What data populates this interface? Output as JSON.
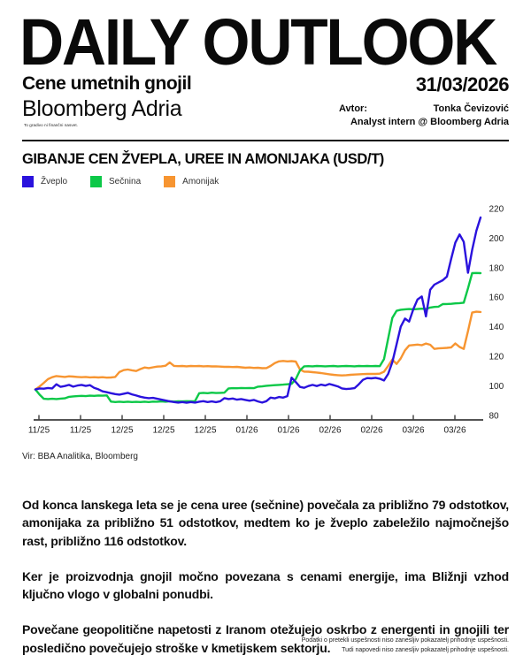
{
  "header": {
    "title": "DAILY OUTLOOK",
    "subtitle": "Cene umetnih gnojil",
    "date": "31/03/2026",
    "brand": "Bloomberg Adria",
    "author_label": "Avtor:",
    "author_name": "Tonka Čevizović",
    "author_role": "Analyst intern @ Bloomberg Adria",
    "disclaimer": "To gradivo ni finančni nasvet."
  },
  "chart_data": {
    "type": "line",
    "title": "GIBANJE CEN ŽVEPLA, UREE IN AMONIJAKA (USD/T)",
    "unit": "USD/T",
    "source": "Vir: BBA Analitika, Bloomberg",
    "grid": false,
    "legend_position": "top-left",
    "ylim": [
      76,
      222
    ],
    "y_ticks": [
      220,
      200,
      180,
      160,
      140,
      120,
      100,
      80
    ],
    "x_tick_labels": [
      "11/25",
      "11/25",
      "12/25",
      "12/25",
      "12/25",
      "01/26",
      "01/26",
      "02/26",
      "02/26",
      "03/26",
      "03/26"
    ],
    "series": [
      {
        "name": "Žveplo",
        "color": "#2A12DD",
        "values": [
          97.5,
          98.2,
          98.0,
          98.5,
          98.2,
          101.0,
          99.3,
          99.8,
          100.6,
          99.4,
          100.2,
          100.6,
          99.9,
          100.4,
          98.6,
          97.6,
          96.2,
          95.6,
          95.0,
          94.4,
          94.0,
          94.6,
          95.2,
          94.2,
          93.4,
          92.6,
          92.0,
          91.6,
          91.8,
          91.2,
          90.6,
          90.0,
          89.4,
          89.0,
          88.6,
          89.0,
          88.5,
          89.0,
          88.6,
          89.2,
          89.6,
          89.0,
          89.4,
          88.9,
          89.5,
          91.6,
          91.0,
          91.4,
          90.6,
          91.0,
          90.4,
          89.9,
          90.4,
          89.4,
          88.6,
          89.6,
          92.0,
          91.5,
          92.4,
          92.0,
          93.0,
          105.5,
          102.5,
          99.2,
          98.6,
          99.8,
          100.6,
          99.8,
          100.8,
          100.2,
          101.2,
          100.4,
          99.6,
          98.2,
          97.8,
          98.0,
          98.4,
          101.0,
          104.0,
          105.2,
          105.0,
          105.4,
          104.8,
          103.6,
          108.0,
          116.0,
          128.0,
          140.0,
          145.5,
          143.5,
          152.0,
          158.5,
          160.5,
          147.0,
          165.0,
          168.5,
          170.0,
          171.5,
          174.0,
          186.0,
          197.0,
          202.5,
          197.5,
          176.5,
          192.0,
          205.0,
          214.0
        ]
      },
      {
        "name": "Sečnina",
        "color": "#0CC848",
        "values": [
          97.5,
          94.0,
          91.2,
          91.0,
          91.2,
          91.0,
          91.3,
          91.5,
          92.5,
          92.8,
          93.0,
          93.2,
          93.0,
          93.3,
          93.2,
          93.4,
          93.3,
          93.5,
          89.3,
          89.0,
          89.2,
          89.0,
          89.2,
          89.0,
          89.1,
          89.0,
          89.2,
          89.0,
          89.3,
          89.2,
          89.4,
          89.2,
          89.5,
          89.3,
          89.5,
          89.4,
          89.6,
          89.5,
          89.6,
          95.0,
          95.2,
          95.0,
          95.3,
          95.1,
          95.2,
          95.3,
          98.2,
          98.4,
          98.3,
          98.5,
          98.4,
          98.5,
          98.4,
          99.4,
          99.6,
          100.0,
          100.2,
          100.4,
          100.6,
          100.8,
          101.0,
          101.3,
          104.5,
          110.5,
          113.2,
          113.3,
          113.2,
          113.4,
          113.3,
          113.2,
          113.3,
          113.4,
          113.2,
          113.3,
          113.4,
          113.3,
          113.2,
          113.4,
          113.3,
          113.4,
          113.3,
          113.4,
          113.3,
          118.0,
          132.0,
          146.0,
          150.8,
          151.5,
          151.8,
          152.0,
          151.8,
          152.0,
          152.2,
          152.0,
          153.0,
          153.4,
          153.6,
          155.3,
          155.4,
          155.5,
          155.8,
          156.0,
          156.3,
          166.0,
          176.3,
          176.4,
          176.3
        ]
      },
      {
        "name": "Amonijak",
        "color": "#F79531",
        "values": [
          97.5,
          99.5,
          102.0,
          104.5,
          105.8,
          106.6,
          106.3,
          106.0,
          106.4,
          106.2,
          106.0,
          105.8,
          106.0,
          105.7,
          105.8,
          105.6,
          105.8,
          105.5,
          105.6,
          106.0,
          109.3,
          110.6,
          111.0,
          110.5,
          110.0,
          111.3,
          112.4,
          112.0,
          112.5,
          113.0,
          113.2,
          113.6,
          115.8,
          113.5,
          113.3,
          113.4,
          113.2,
          113.4,
          113.3,
          113.4,
          113.2,
          113.3,
          113.1,
          113.2,
          113.0,
          112.8,
          112.9,
          112.7,
          112.8,
          112.5,
          112.2,
          112.4,
          112.1,
          112.2,
          111.9,
          112.0,
          113.4,
          115.4,
          116.5,
          116.8,
          116.5,
          116.7,
          116.4,
          111.0,
          109.6,
          109.5,
          109.2,
          109.0,
          108.6,
          108.2,
          107.8,
          107.4,
          107.2,
          107.0,
          107.2,
          107.4,
          107.6,
          107.8,
          107.9,
          108.0,
          108.1,
          108.0,
          108.2,
          109.5,
          113.5,
          117.8,
          114.8,
          118.5,
          124.0,
          127.3,
          127.6,
          127.9,
          127.5,
          128.6,
          127.8,
          125.0,
          125.3,
          125.5,
          125.7,
          126.0,
          128.7,
          126.3,
          125.0,
          137.0,
          149.6,
          150.2,
          150.0
        ]
      }
    ]
  },
  "body": {
    "paragraphs": [
      "Od konca lanskega leta se je cena uree (sečnine) povečala za približno 79 odstotkov, amonijaka za približno 51 odstotkov, medtem ko je žveplo zabeležilo najmočnejšo rast, približno 116 odstotkov.",
      "Ker je proizvodnja gnojil močno povezana s cenami energije, ima Bližnji vzhod ključno vlogo v globalni ponudbi.",
      "Povečane geopolitične napetosti z Iranom otežujejo oskrbo z energenti in gnojili ter posledično povečujejo stroške v kmetijskem sektorju."
    ]
  },
  "footer": {
    "lines": [
      "Podatki o pretekli uspešnosti niso zanesljiv pokazatelj prihodnje uspešnosti.",
      "Tudi napovedi niso zanesljiv pokazatelj prihodnje uspešnosti."
    ]
  }
}
